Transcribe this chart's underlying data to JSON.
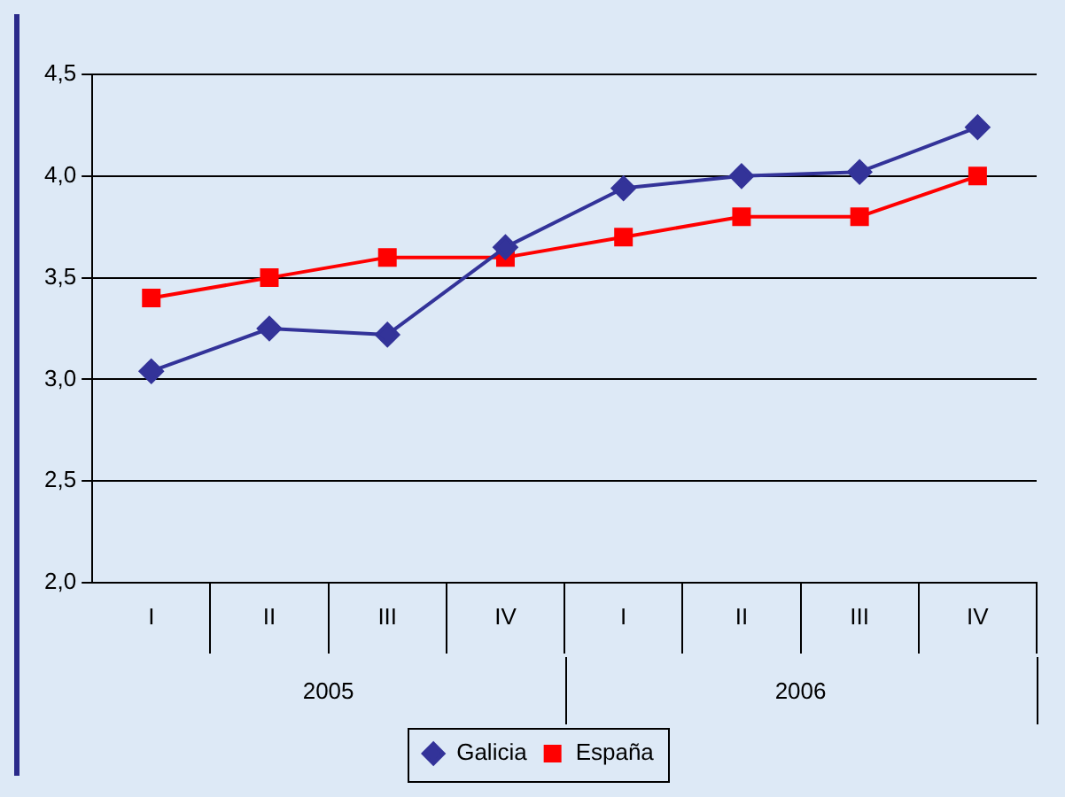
{
  "chart_data": {
    "type": "line",
    "categories": [
      "I",
      "II",
      "III",
      "IV",
      "I",
      "II",
      "III",
      "IV"
    ],
    "annotations": [
      "2005",
      "2006"
    ],
    "series": [
      {
        "name": "Galicia",
        "color": "#333399",
        "marker": "diamond",
        "values": [
          3.04,
          3.25,
          3.22,
          3.65,
          3.94,
          4.0,
          4.02,
          4.24
        ]
      },
      {
        "name": "España",
        "color": "#ff0000",
        "marker": "square",
        "values": [
          3.4,
          3.5,
          3.6,
          3.6,
          3.7,
          3.8,
          3.8,
          4.0
        ]
      }
    ],
    "ylim": [
      2.0,
      4.5
    ],
    "yticks": [
      {
        "value": 2.0,
        "label": "2,0"
      },
      {
        "value": 2.5,
        "label": "2,5"
      },
      {
        "value": 3.0,
        "label": "3,0"
      },
      {
        "value": 3.5,
        "label": "3,5"
      },
      {
        "value": 4.0,
        "label": "4,0"
      },
      {
        "value": 4.5,
        "label": "4,5"
      }
    ],
    "grid": "y",
    "legend": "bottom"
  }
}
